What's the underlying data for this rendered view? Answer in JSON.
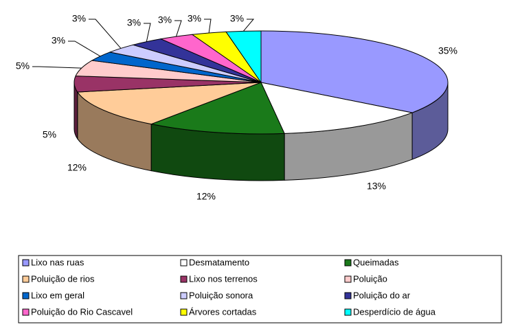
{
  "chart_data": {
    "type": "pie",
    "categories": [
      "Lixo nas ruas",
      "Desmatamento",
      "Queimadas",
      "Poluição de rios",
      "Lixo nos terrenos",
      "Poluição",
      "Lixo em geral",
      "Poluição sonora",
      "Poluição do ar",
      "Poluição do Rio Cascavel",
      "Árvores cortadas",
      "Desperdício de água"
    ],
    "values": [
      35,
      13,
      12,
      12,
      5,
      5,
      3,
      3,
      3,
      3,
      3,
      3
    ],
    "value_labels": [
      "35%",
      "13%",
      "12%",
      "12%",
      "5%",
      "5%",
      "3%",
      "3%",
      "3%",
      "3%",
      "3%",
      "3%"
    ],
    "colors": [
      "#9999ff",
      "#ffffff",
      "#1a7a1a",
      "#ffcc99",
      "#993366",
      "#ffcccc",
      "#0066cc",
      "#ccccff",
      "#333399",
      "#ff66cc",
      "#ffff00",
      "#00ffff"
    ],
    "legend": "bottom"
  }
}
